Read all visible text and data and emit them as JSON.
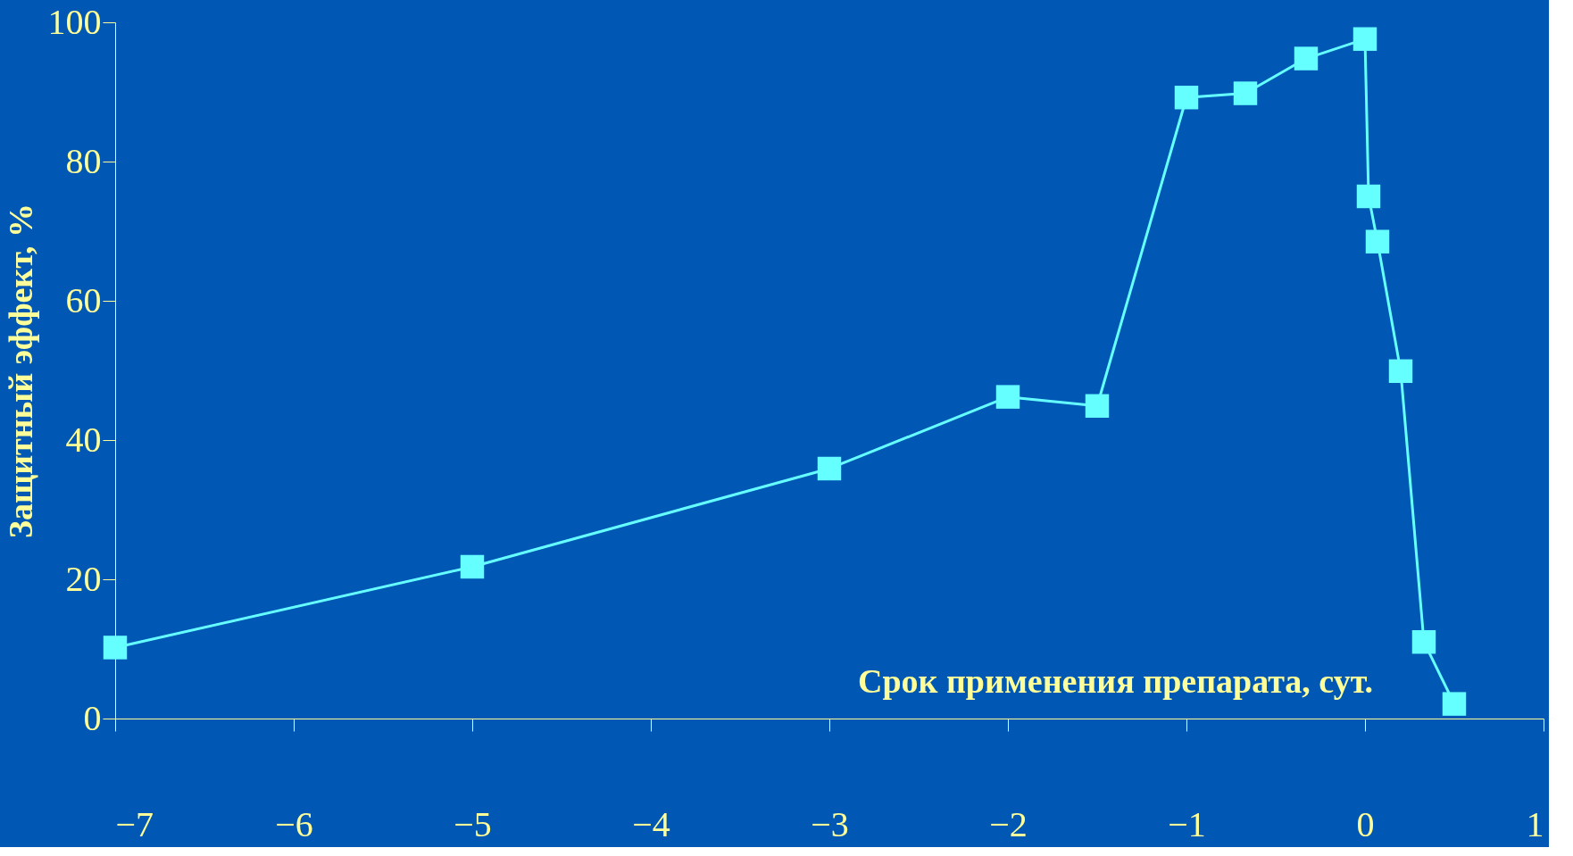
{
  "chart_data": {
    "type": "line",
    "xlabel": "Срок применения препарата, сут.",
    "ylabel": "Защитный эффект, %",
    "x": [
      -7,
      -5,
      -3,
      -2,
      -1.5,
      -1,
      -0.67,
      -0.33,
      0,
      0.02,
      0.07,
      0.2,
      0.33,
      0.5
    ],
    "series": [
      {
        "color": "#66ffff",
        "values": [
          10.2,
          21.8,
          35.9,
          46.2,
          44.9,
          89.2,
          89.8,
          94.8,
          97.6,
          75,
          68.5,
          49.9,
          11,
          2.1
        ]
      }
    ],
    "xlim": [
      -7,
      1
    ],
    "xticks": [
      -7,
      -6,
      -5,
      -4,
      -3,
      -2,
      -1,
      0,
      1
    ],
    "ylim": [
      0,
      100
    ],
    "yticks": [
      0,
      20,
      40,
      60,
      80,
      100
    ],
    "marker": "square",
    "line_style": "solid",
    "grid": false
  }
}
